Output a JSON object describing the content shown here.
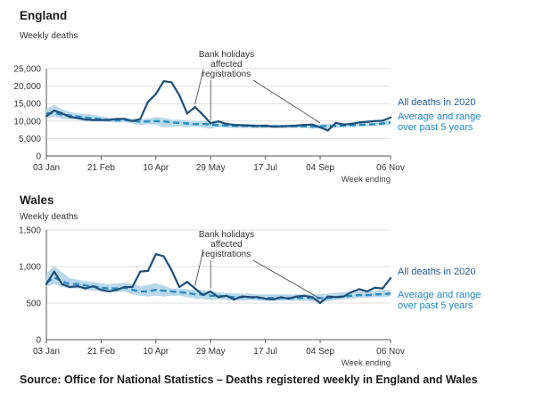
{
  "colors": {
    "line_2020": "#1f4e79",
    "avg_line": "#2b8cc4",
    "range_fill": "#b9d9ea",
    "label_2020": "#1f5c99",
    "label_avg": "#1e88c7",
    "axis": "#555555",
    "grid": "#dddddd",
    "annotation": "#444444"
  },
  "source": "Source: Office for National Statistics – Deaths registered weekly in England and Wales",
  "chart_data": [
    {
      "type": "line",
      "title": "England",
      "ylabel": "Weekly deaths",
      "xlabel": "Week ending",
      "ylim": [
        0,
        25000
      ],
      "yticks": [
        0,
        5000,
        10000,
        15000,
        20000,
        25000
      ],
      "ytick_labels": [
        "0",
        "5,000",
        "10,000",
        "15,000",
        "20,000",
        "25,000"
      ],
      "xticks": [
        {
          "week": 1,
          "label": "03 Jan"
        },
        {
          "week": 8,
          "label": "21 Feb"
        },
        {
          "week": 15,
          "label": "10 Apr"
        },
        {
          "week": 22,
          "label": "29 May"
        },
        {
          "week": 29,
          "label": "17 Jul"
        },
        {
          "week": 36,
          "label": "04 Sep"
        },
        {
          "week": 45,
          "label": "06 Nov"
        }
      ],
      "legend": {
        "all_deaths": "All deaths in 2020",
        "average": "Average and range over past 5 years",
        "average_lines": [
          "Average and range",
          "over past 5 years"
        ]
      },
      "annotation": {
        "text_lines": [
          "Bank holidays",
          "affected",
          "registrations"
        ],
        "target_weeks": [
          20,
          22,
          36
        ]
      },
      "series": [
        {
          "name": "All deaths in 2020",
          "values": [
            11400,
            13000,
            12200,
            11200,
            10900,
            10400,
            10300,
            10300,
            10300,
            10600,
            10600,
            10000,
            10600,
            15500,
            17700,
            21400,
            21100,
            17400,
            12200,
            14000,
            11800,
            9400,
            9900,
            9200,
            8900,
            8800,
            8700,
            8600,
            8700,
            8400,
            8500,
            8600,
            8700,
            8900,
            9000,
            8200,
            7300,
            9500,
            9000,
            9200,
            9600,
            9800,
            10000,
            10100,
            11000
          ]
        },
        {
          "name": "Average (past 5 years)",
          "values": [
            12200,
            12300,
            11800,
            11600,
            11300,
            11000,
            10800,
            10500,
            10300,
            10200,
            10300,
            10100,
            9800,
            9900,
            10000,
            9900,
            9600,
            9500,
            9300,
            9100,
            9200,
            9000,
            8800,
            8700,
            8600,
            8600,
            8600,
            8500,
            8500,
            8500,
            8500,
            8500,
            8500,
            8500,
            8400,
            8500,
            8600,
            8600,
            8700,
            8800,
            8900,
            9000,
            9100,
            9300,
            9600
          ]
        },
        {
          "name": "Range min",
          "values": [
            10800,
            11300,
            10600,
            10500,
            10300,
            10000,
            9900,
            9800,
            9700,
            9600,
            9600,
            9300,
            8800,
            9100,
            8900,
            8200,
            8300,
            8500,
            8200,
            8500,
            8100,
            7800,
            8300,
            8100,
            8000,
            8000,
            8000,
            7900,
            8000,
            8000,
            7900,
            8000,
            8000,
            8000,
            7800,
            7900,
            7700,
            8100,
            8200,
            8300,
            8400,
            8500,
            8600,
            8700,
            9000
          ]
        },
        {
          "name": "Range max",
          "values": [
            13500,
            14600,
            13400,
            12600,
            12200,
            12000,
            11800,
            11400,
            11000,
            10800,
            10900,
            10700,
            10600,
            10700,
            11100,
            10900,
            10400,
            10400,
            10200,
            9900,
            10000,
            9800,
            9500,
            9300,
            9200,
            9200,
            9100,
            9100,
            9000,
            9000,
            9000,
            9000,
            9000,
            9000,
            9000,
            9100,
            9200,
            9200,
            9300,
            9300,
            9400,
            9500,
            9600,
            9900,
            10200
          ]
        }
      ]
    },
    {
      "type": "line",
      "title": "Wales",
      "ylabel": "Weekly deaths",
      "xlabel": "Week ending",
      "ylim": [
        0,
        1500
      ],
      "yticks": [
        0,
        500,
        1000,
        1500
      ],
      "ytick_labels": [
        "0",
        "500",
        "1,000",
        "1,500"
      ],
      "xticks": [
        {
          "week": 1,
          "label": "03 Jan"
        },
        {
          "week": 8,
          "label": "21 Feb"
        },
        {
          "week": 15,
          "label": "10 Apr"
        },
        {
          "week": 22,
          "label": "29 May"
        },
        {
          "week": 29,
          "label": "17 Jul"
        },
        {
          "week": 36,
          "label": "04 Sep"
        },
        {
          "week": 45,
          "label": "06 Nov"
        }
      ],
      "legend": {
        "all_deaths": "All deaths in 2020",
        "average": "Average and range over past 5 years",
        "average_lines": [
          "Average and range",
          "over past 5 years"
        ]
      },
      "annotation": {
        "text_lines": [
          "Bank holidays",
          "affected",
          "registrations"
        ],
        "target_weeks": [
          20,
          22,
          36
        ]
      },
      "series": [
        {
          "name": "All deaths in 2020",
          "values": [
            760,
            930,
            760,
            720,
            730,
            700,
            730,
            680,
            660,
            680,
            720,
            720,
            930,
            940,
            1170,
            1140,
            950,
            720,
            790,
            700,
            610,
            660,
            580,
            600,
            550,
            590,
            580,
            580,
            560,
            550,
            580,
            560,
            590,
            600,
            580,
            500,
            590,
            580,
            590,
            650,
            690,
            660,
            710,
            700,
            840
          ]
        },
        {
          "name": "Average (past 5 years)",
          "values": [
            780,
            850,
            800,
            760,
            760,
            740,
            730,
            710,
            700,
            700,
            710,
            680,
            660,
            660,
            680,
            670,
            660,
            650,
            640,
            620,
            620,
            600,
            600,
            590,
            580,
            580,
            580,
            570,
            570,
            570,
            570,
            570,
            570,
            570,
            570,
            570,
            570,
            580,
            590,
            600,
            610,
            610,
            620,
            620,
            630
          ]
        },
        {
          "name": "Range min",
          "values": [
            720,
            760,
            720,
            700,
            700,
            680,
            670,
            660,
            650,
            650,
            660,
            620,
            600,
            590,
            600,
            590,
            600,
            600,
            580,
            560,
            560,
            540,
            550,
            540,
            530,
            530,
            540,
            530,
            530,
            530,
            530,
            530,
            530,
            530,
            520,
            520,
            520,
            540,
            550,
            560,
            570,
            570,
            580,
            580,
            590
          ]
        },
        {
          "name": "Range max",
          "values": [
            900,
            1010,
            920,
            840,
            820,
            800,
            790,
            770,
            760,
            770,
            780,
            760,
            730,
            750,
            770,
            740,
            700,
            700,
            690,
            680,
            680,
            660,
            650,
            640,
            630,
            630,
            630,
            620,
            620,
            620,
            620,
            620,
            620,
            620,
            620,
            620,
            630,
            640,
            650,
            660,
            660,
            670,
            670,
            680,
            680
          ]
        }
      ]
    }
  ]
}
